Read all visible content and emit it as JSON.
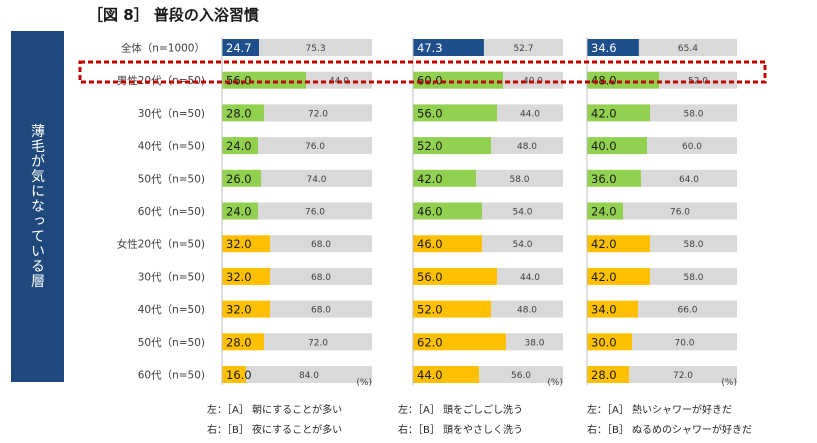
{
  "title": "［図 8］ 普段の入浴習慣",
  "side_label": "薄毛が気になっている層",
  "unit_label": "(%)",
  "colors": {
    "total_left": "#1f4e8c",
    "male_left": "#92d050",
    "female_left": "#ffc000",
    "right": "#d9d9d9",
    "side_bg": "#1f497d",
    "highlight": "#c00000"
  },
  "rows": [
    {
      "label": "全体（n=1000）",
      "group": "total"
    },
    {
      "label": "男性20代（n=50)",
      "group": "male"
    },
    {
      "label": "30代（n=50)",
      "group": "male"
    },
    {
      "label": "40代（n=50)",
      "group": "male"
    },
    {
      "label": "50代（n=50)",
      "group": "male"
    },
    {
      "label": "60代（n=50)",
      "group": "male"
    },
    {
      "label": "女性20代（n=50)",
      "group": "female"
    },
    {
      "label": "30代（n=50)",
      "group": "female"
    },
    {
      "label": "40代（n=50)",
      "group": "female"
    },
    {
      "label": "50代（n=50)",
      "group": "female"
    },
    {
      "label": "60代（n=50)",
      "group": "female"
    }
  ],
  "chart_data": [
    {
      "type": "bar",
      "stacked": true,
      "categories": [
        "全体（n=1000）",
        "男性20代（n=50)",
        "30代（n=50)",
        "40代（n=50)",
        "50代（n=50)",
        "60代（n=50)",
        "女性20代（n=50)",
        "30代（n=50)",
        "40代（n=50)",
        "50代（n=50)",
        "60代（n=50)"
      ],
      "series": [
        {
          "name": "［A］ 朝にすることが多い",
          "values": [
            24.7,
            56.0,
            28.0,
            24.0,
            26.0,
            24.0,
            32.0,
            32.0,
            32.0,
            28.0,
            16.0
          ]
        },
        {
          "name": "［B］ 夜にすることが多い",
          "values": [
            75.3,
            44.0,
            72.0,
            76.0,
            74.0,
            76.0,
            68.0,
            68.0,
            68.0,
            72.0,
            84.0
          ]
        }
      ],
      "legend": {
        "left": "左：［A］ 朝にすることが多い",
        "right": "右：［B］ 夜にすることが多い"
      }
    },
    {
      "type": "bar",
      "stacked": true,
      "categories": [
        "全体（n=1000）",
        "男性20代（n=50)",
        "30代（n=50)",
        "40代（n=50)",
        "50代（n=50)",
        "60代（n=50)",
        "女性20代（n=50)",
        "30代（n=50)",
        "40代（n=50)",
        "50代（n=50)",
        "60代（n=50)"
      ],
      "series": [
        {
          "name": "［A］ 頭をごしごし洗う",
          "values": [
            47.3,
            60.0,
            56.0,
            52.0,
            42.0,
            46.0,
            46.0,
            56.0,
            52.0,
            62.0,
            44.0
          ]
        },
        {
          "name": "［B］ 頭をやさしく洗う",
          "values": [
            52.7,
            40.0,
            44.0,
            48.0,
            58.0,
            54.0,
            54.0,
            44.0,
            48.0,
            38.0,
            56.0
          ]
        }
      ],
      "legend": {
        "left": "左：［A］ 頭をごしごし洗う",
        "right": "右：［B］ 頭をやさしく洗う"
      }
    },
    {
      "type": "bar",
      "stacked": true,
      "categories": [
        "全体（n=1000）",
        "男性20代（n=50)",
        "30代（n=50)",
        "40代（n=50)",
        "50代（n=50)",
        "60代（n=50)",
        "女性20代（n=50)",
        "30代（n=50)",
        "40代（n=50)",
        "50代（n=50)",
        "60代（n=50)"
      ],
      "series": [
        {
          "name": "［A］ 熱いシャワーが好きだ",
          "values": [
            34.6,
            48.0,
            42.0,
            40.0,
            36.0,
            24.0,
            42.0,
            42.0,
            34.0,
            30.0,
            28.0
          ]
        },
        {
          "name": "［B］ ぬるめのシャワーが好きだ",
          "values": [
            65.4,
            52.0,
            58.0,
            60.0,
            64.0,
            76.0,
            58.0,
            58.0,
            66.0,
            70.0,
            72.0
          ]
        }
      ],
      "legend": {
        "left": "左：［A］ 熱いシャワーが好きだ",
        "right": "右：［B］ ぬるめのシャワーが好きだ"
      }
    }
  ]
}
